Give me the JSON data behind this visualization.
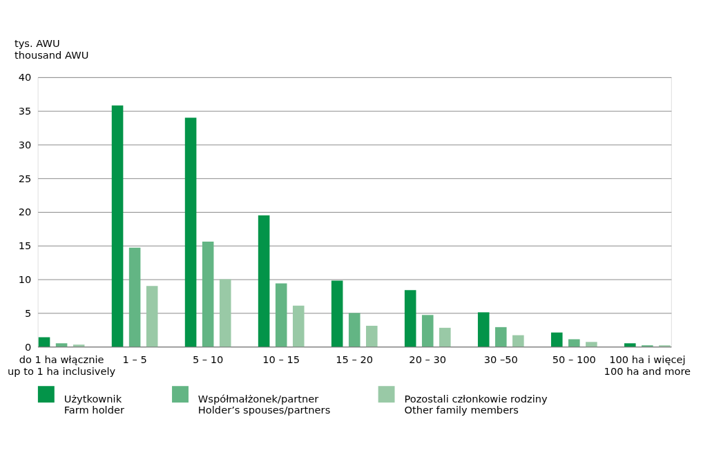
{
  "chart_data": {
    "type": "bar",
    "ylabel": "tys. AWU\nthousand AWU",
    "categories": [
      "do 1 ha włącznie\nup to 1 ha inclusively",
      "1 – 5",
      "5 – 10",
      "10 – 15",
      "15 – 20",
      "20 – 30",
      "30 –50",
      "50 – 100",
      "100 ha i więcej\n100 ha and more"
    ],
    "series": [
      {
        "name": "Użytkownik\nFarm holder",
        "color": "#039449",
        "values": [
          1.4,
          35.8,
          34.0,
          19.5,
          9.8,
          8.4,
          5.1,
          2.1,
          0.5
        ]
      },
      {
        "name": "Współmałżonek/partner\nHolder’s spouses/partners",
        "color": "#63b584",
        "values": [
          0.5,
          14.7,
          15.6,
          9.4,
          5.0,
          4.7,
          2.9,
          1.1,
          0.2
        ]
      },
      {
        "name": "Pozostali członkowie rodziny\nOther family members",
        "color": "#99c9a6",
        "values": [
          0.3,
          9.0,
          10.0,
          6.1,
          3.1,
          2.8,
          1.7,
          0.7,
          0.2
        ]
      }
    ],
    "ylim": [
      0,
      40
    ],
    "yticks": [
      0,
      5,
      10,
      15,
      20,
      25,
      30,
      35,
      40
    ],
    "grid": "y",
    "legend": "bottom"
  }
}
